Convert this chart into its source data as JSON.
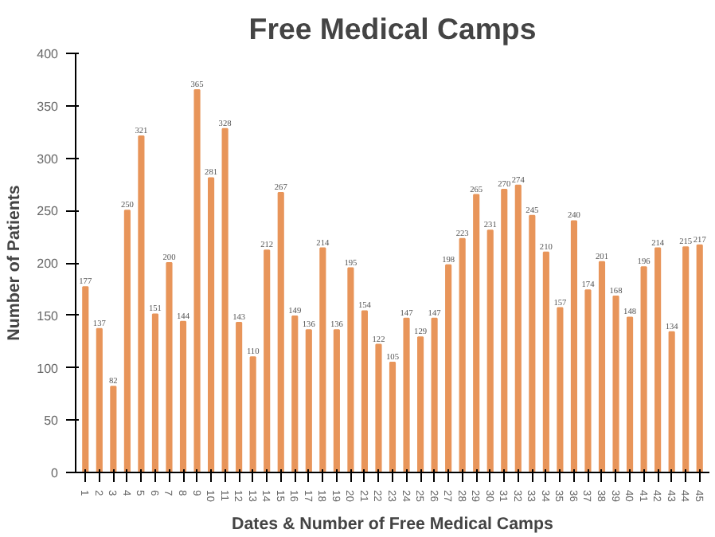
{
  "chart_data": {
    "type": "bar",
    "title": "Free Medical Camps",
    "xlabel": "Dates & Number of Free Medical Camps",
    "ylabel": "Number of Patients",
    "categories": [
      "1",
      "2",
      "3",
      "4",
      "5",
      "6",
      "7",
      "8",
      "9",
      "10",
      "11",
      "12",
      "13",
      "14",
      "15",
      "16",
      "17",
      "18",
      "19",
      "20",
      "21",
      "22",
      "23",
      "24",
      "25",
      "26",
      "27",
      "28",
      "29",
      "30",
      "31",
      "32",
      "33",
      "34",
      "35",
      "36",
      "37",
      "38",
      "39",
      "40",
      "41",
      "42",
      "43",
      "44",
      "45"
    ],
    "values": [
      177,
      137,
      82,
      250,
      321,
      151,
      200,
      144,
      365,
      281,
      328,
      143,
      110,
      212,
      267,
      149,
      136,
      214,
      136,
      195,
      154,
      122,
      105,
      147,
      129,
      147,
      198,
      223,
      265,
      231,
      270,
      274,
      245,
      210,
      157,
      240,
      174,
      201,
      168,
      148,
      196,
      214,
      134,
      215,
      217
    ],
    "color": "#e8955a",
    "ylim": [
      0,
      400
    ],
    "yticks": [
      0,
      50,
      100,
      150,
      200,
      250,
      300,
      350,
      400
    ],
    "grid": false,
    "data_labels": true
  }
}
